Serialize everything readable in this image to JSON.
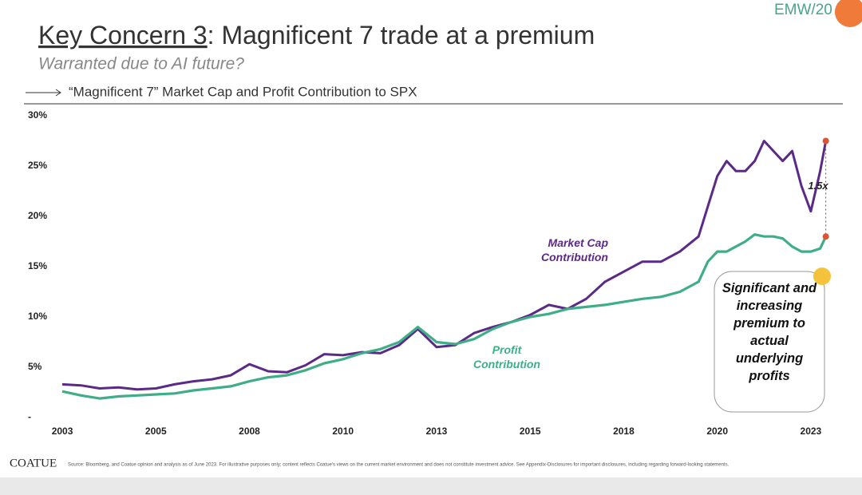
{
  "header": {
    "title_underlined": "Key Concern 3",
    "title_rest": ": Magnificent 7 trade at a premium",
    "subtitle": "Warranted due to AI future?",
    "brand": "EMW/20"
  },
  "chart_data": {
    "type": "line",
    "title": "“Magnificent 7” Market Cap and Profit Contribution to SPX",
    "x": [
      2003,
      2003.5,
      2004,
      2004.5,
      2005,
      2005.5,
      2006,
      2006.5,
      2007,
      2007.5,
      2008,
      2008.5,
      2009,
      2009.5,
      2010,
      2010.5,
      2011,
      2011.5,
      2012,
      2012.5,
      2013,
      2013.5,
      2014,
      2014.5,
      2015,
      2015.5,
      2016,
      2016.5,
      2017,
      2017.5,
      2018,
      2018.5,
      2019,
      2019.5,
      2020,
      2020.25,
      2020.5,
      2020.75,
      2021,
      2021.25,
      2021.5,
      2021.75,
      2022,
      2022.25,
      2022.5,
      2022.75,
      2023,
      2023.25,
      2023.4
    ],
    "series": [
      {
        "name": "Market Cap Contribution",
        "color": "#5b2a86",
        "values": [
          3.3,
          3.2,
          2.9,
          3.0,
          2.8,
          2.9,
          3.3,
          3.6,
          3.8,
          4.2,
          5.3,
          4.6,
          4.5,
          5.2,
          6.3,
          6.2,
          6.5,
          6.4,
          7.2,
          8.8,
          7.0,
          7.2,
          8.4,
          9.0,
          9.5,
          10.2,
          11.2,
          10.8,
          11.8,
          13.5,
          14.5,
          15.5,
          15.5,
          16.5,
          18.0,
          21,
          24,
          25.5,
          24.5,
          24.5,
          25.5,
          27.5,
          26.5,
          25.5,
          26.5,
          23,
          20.5,
          24.5,
          27.5
        ]
      },
      {
        "name": "Profit Contribution",
        "color": "#3fae87",
        "values": [
          2.6,
          2.2,
          1.9,
          2.1,
          2.2,
          2.3,
          2.4,
          2.7,
          2.9,
          3.1,
          3.6,
          4.0,
          4.2,
          4.7,
          5.4,
          5.8,
          6.4,
          6.8,
          7.5,
          9.0,
          7.5,
          7.3,
          7.8,
          8.8,
          9.5,
          10.0,
          10.3,
          10.8,
          11.0,
          11.2,
          11.5,
          11.8,
          12.0,
          12.5,
          13.5,
          15.5,
          16.5,
          16.5,
          17.0,
          17.5,
          18.2,
          18.0,
          18.0,
          17.8,
          17.0,
          16.5,
          16.5,
          16.8,
          18.0
        ]
      }
    ],
    "xlim": [
      2002.95,
      2023.45
    ],
    "xticks": [
      {
        "value": 2003,
        "label": "2003"
      },
      {
        "value": 2005.5,
        "label": "2005"
      },
      {
        "value": 2008,
        "label": "2008"
      },
      {
        "value": 2010.5,
        "label": "2010"
      },
      {
        "value": 2013,
        "label": "2013"
      },
      {
        "value": 2015.5,
        "label": "2015"
      },
      {
        "value": 2018,
        "label": "2018"
      },
      {
        "value": 2020.5,
        "label": "2020"
      },
      {
        "value": 2023,
        "label": "2023"
      }
    ],
    "ylim": [
      0,
      30
    ],
    "yticks": [
      {
        "value": 0,
        "label": "-"
      },
      {
        "value": 5,
        "label": "5%"
      },
      {
        "value": 10,
        "label": "10%"
      },
      {
        "value": 15,
        "label": "15%"
      },
      {
        "value": 20,
        "label": "20%"
      },
      {
        "value": 25,
        "label": "25%"
      },
      {
        "value": 30,
        "label": "30%"
      }
    ],
    "ratio_label": "1.5x",
    "ratio_color": "#e0532f",
    "callout": "Significant and increasing premium to actual underlying profits",
    "source": "Source: Bloomberg, and Coatue opinion and analysis as of June 2023. For illustrative purposes only; content reflects Coatue's views on the current market environment and does not constitute investment advice. See Appendix-Disclosures for important disclosures, including regarding forward-looking statements.",
    "logo": "COATUE"
  }
}
